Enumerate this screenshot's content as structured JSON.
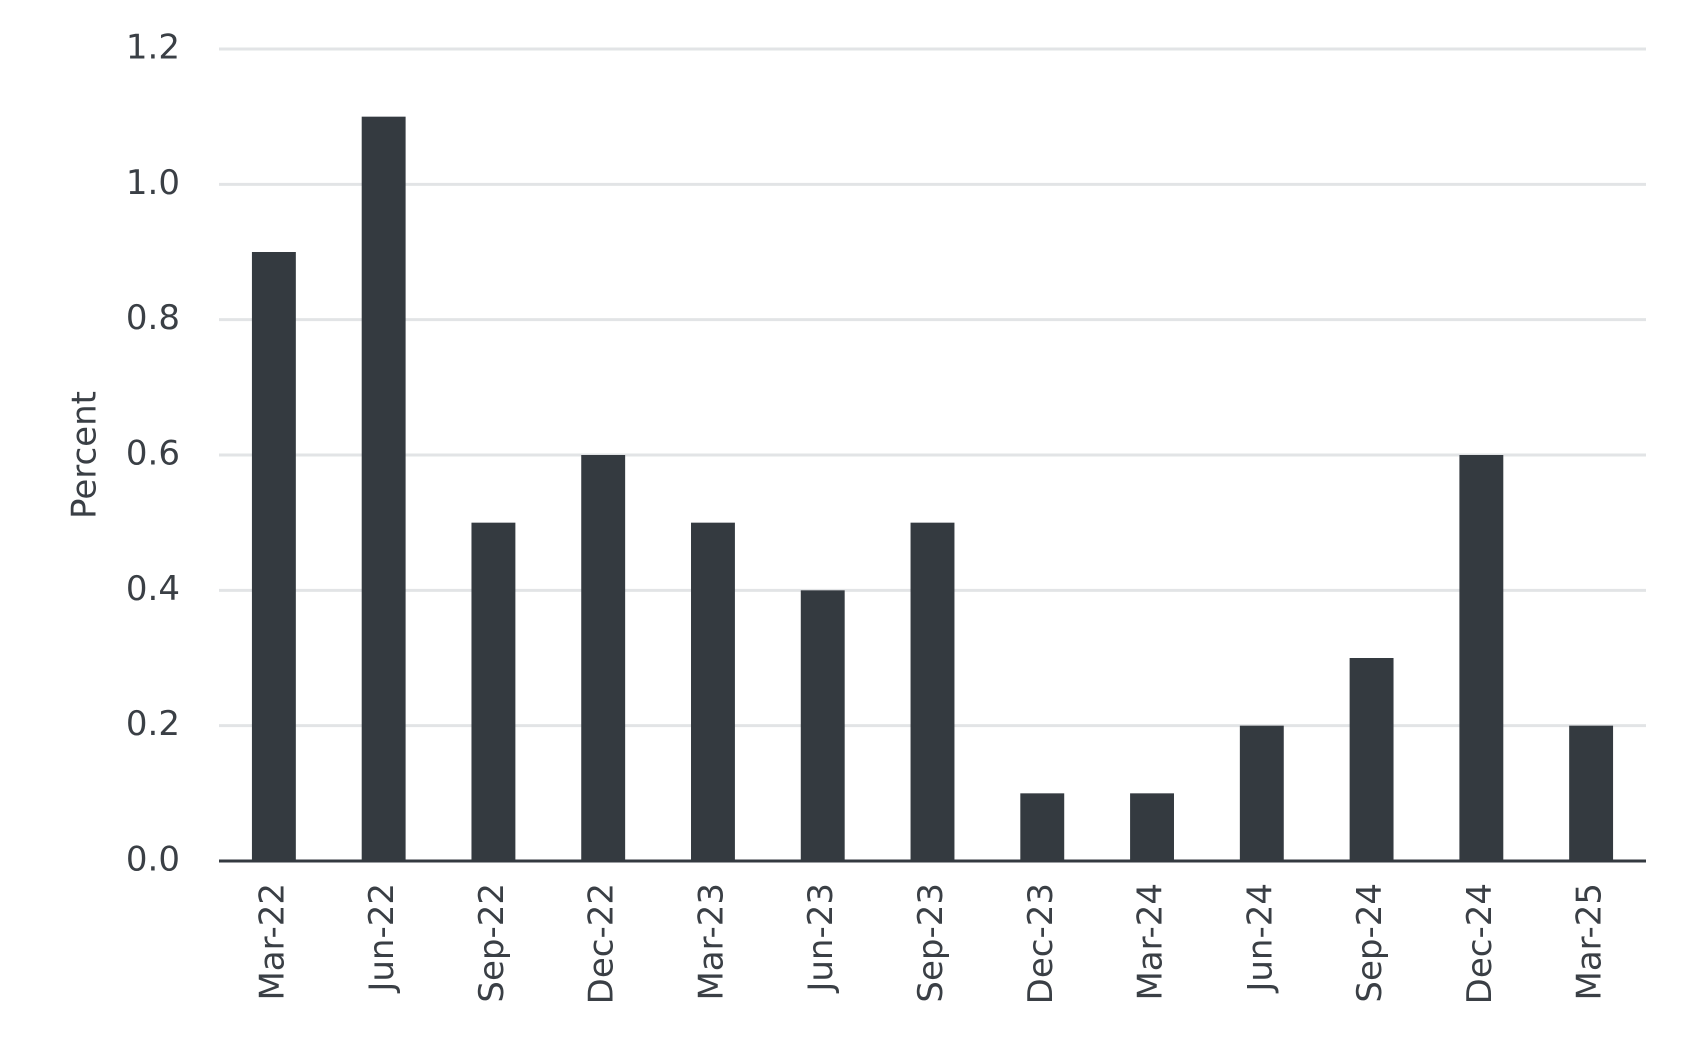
{
  "chart_data": {
    "type": "bar",
    "y_label": "Percent",
    "categories": [
      "Mar-22",
      "Jun-22",
      "Sep-22",
      "Dec-22",
      "Mar-23",
      "Jun-23",
      "Sep-23",
      "Dec-23",
      "Mar-24",
      "Jun-24",
      "Sep-24",
      "Dec-24",
      "Mar-25"
    ],
    "values": [
      0.9,
      1.1,
      0.5,
      0.6,
      0.5,
      0.4,
      0.5,
      0.1,
      0.1,
      0.2,
      0.3,
      0.6,
      0.2
    ],
    "color": "#343a40",
    "ylim": [
      0,
      1.2
    ],
    "yticks": [
      {
        "value": 0,
        "label": "0.0"
      },
      0.2,
      0.4,
      0.6,
      0.8,
      {
        "value": 1,
        "label": "1.0"
      },
      1.2
    ],
    "grid": true
  }
}
